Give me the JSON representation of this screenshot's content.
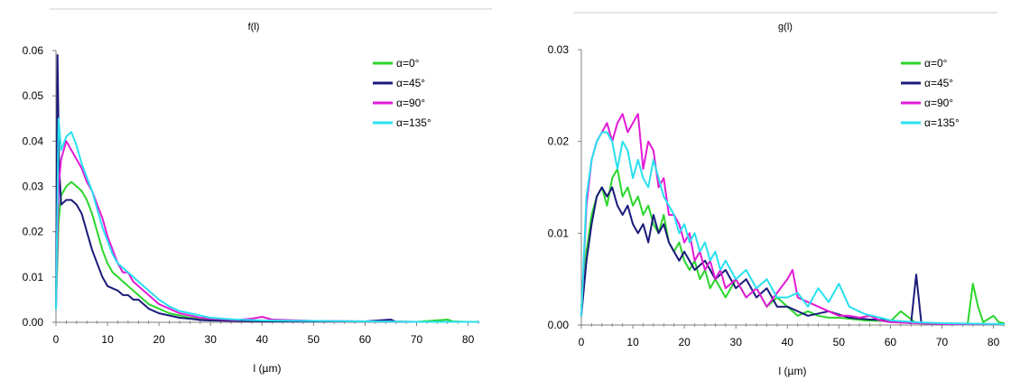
{
  "colors": {
    "alpha_0": "#2bd62b",
    "alpha_45": "#1a1a7a",
    "alpha_90": "#e21ad6",
    "alpha_135": "#28e0ee",
    "axis": "#7f7f7f",
    "title_rule": "#cfcfcf"
  },
  "chart_data": [
    {
      "type": "line",
      "title": "f(l)",
      "xlabel": "l (µm)",
      "ylabel": "",
      "xlim": [
        0,
        82
      ],
      "ylim": [
        0,
        0.06
      ],
      "xticks": [
        "0",
        "10",
        "20",
        "30",
        "40",
        "50",
        "60",
        "70",
        "80"
      ],
      "yticks": [
        "0.00",
        "0.01",
        "0.02",
        "0.03",
        "0.04",
        "0.05",
        "0.06"
      ],
      "grid": false,
      "legend_position": "top-right",
      "series": [
        {
          "name": "α=0°",
          "x": [
            0,
            0.5,
            1,
            2,
            3,
            4,
            5,
            6,
            7,
            8,
            9,
            10,
            11,
            12,
            13,
            14,
            15,
            16,
            18,
            20,
            22,
            24,
            26,
            28,
            30,
            35,
            40,
            50,
            60,
            70,
            76,
            77,
            80,
            82
          ],
          "y": [
            0.003,
            0.022,
            0.028,
            0.03,
            0.031,
            0.03,
            0.029,
            0.027,
            0.024,
            0.02,
            0.016,
            0.013,
            0.011,
            0.01,
            0.009,
            0.008,
            0.007,
            0.006,
            0.004,
            0.003,
            0.002,
            0.0015,
            0.001,
            0.0008,
            0.0005,
            0.0004,
            0.0003,
            0.0002,
            0.0002,
            0.0001,
            0.0006,
            0.0002,
            0.0001,
            0.0001
          ]
        },
        {
          "name": "α=45°",
          "x": [
            0,
            0.3,
            0.6,
            1,
            2,
            3,
            4,
            5,
            6,
            7,
            8,
            9,
            10,
            11,
            12,
            13,
            14,
            15,
            16,
            18,
            20,
            22,
            24,
            26,
            28,
            30,
            35,
            40,
            50,
            60,
            65,
            66,
            70,
            82
          ],
          "y": [
            0.003,
            0.059,
            0.035,
            0.026,
            0.027,
            0.027,
            0.026,
            0.024,
            0.02,
            0.016,
            0.013,
            0.01,
            0.008,
            0.0075,
            0.007,
            0.006,
            0.006,
            0.005,
            0.005,
            0.003,
            0.002,
            0.0015,
            0.001,
            0.0008,
            0.0005,
            0.0004,
            0.0003,
            0.0002,
            0.0002,
            0.0002,
            0.0006,
            0.0001,
            0.0001,
            0.0001
          ]
        },
        {
          "name": "α=90°",
          "x": [
            0,
            0.5,
            1,
            2,
            3,
            4,
            5,
            6,
            7,
            8,
            9,
            10,
            11,
            12,
            13,
            14,
            15,
            16,
            18,
            20,
            22,
            24,
            26,
            28,
            30,
            35,
            38,
            40,
            42,
            50,
            60,
            70,
            82
          ],
          "y": [
            0.003,
            0.03,
            0.036,
            0.04,
            0.038,
            0.036,
            0.034,
            0.031,
            0.029,
            0.026,
            0.023,
            0.019,
            0.016,
            0.013,
            0.011,
            0.011,
            0.009,
            0.008,
            0.006,
            0.004,
            0.003,
            0.002,
            0.0015,
            0.001,
            0.0008,
            0.0005,
            0.0008,
            0.0012,
            0.0006,
            0.0003,
            0.0002,
            0.0001,
            0.0001
          ]
        },
        {
          "name": "α=135°",
          "x": [
            0,
            0.5,
            1,
            2,
            3,
            4,
            5,
            6,
            7,
            8,
            9,
            10,
            11,
            12,
            13,
            14,
            15,
            16,
            18,
            20,
            22,
            24,
            26,
            28,
            30,
            35,
            40,
            50,
            60,
            70,
            82
          ],
          "y": [
            0.003,
            0.045,
            0.038,
            0.041,
            0.042,
            0.039,
            0.035,
            0.032,
            0.029,
            0.025,
            0.021,
            0.018,
            0.015,
            0.013,
            0.012,
            0.011,
            0.01,
            0.009,
            0.007,
            0.005,
            0.0035,
            0.0025,
            0.002,
            0.0015,
            0.001,
            0.0006,
            0.0004,
            0.0003,
            0.0002,
            0.0001,
            0.0001
          ]
        }
      ]
    },
    {
      "type": "line",
      "title": "g(l)",
      "xlabel": "l (µm)",
      "ylabel": "",
      "xlim": [
        0,
        82
      ],
      "ylim": [
        0,
        0.03
      ],
      "xticks": [
        "0",
        "10",
        "20",
        "30",
        "40",
        "50",
        "60",
        "70",
        "80"
      ],
      "yticks": [
        "0.00",
        "0.01",
        "0.02",
        "0.03"
      ],
      "grid": false,
      "legend_position": "top-right",
      "series": [
        {
          "name": "α=0°",
          "x": [
            0,
            1,
            2,
            3,
            4,
            5,
            6,
            7,
            8,
            9,
            10,
            11,
            12,
            13,
            14,
            15,
            16,
            17,
            18,
            19,
            20,
            21,
            22,
            23,
            24,
            25,
            26,
            28,
            30,
            32,
            34,
            36,
            38,
            40,
            42,
            44,
            46,
            48,
            50,
            55,
            60,
            62,
            65,
            70,
            75,
            76,
            77,
            78,
            80,
            81,
            82
          ],
          "y": [
            0.002,
            0.008,
            0.012,
            0.014,
            0.015,
            0.013,
            0.016,
            0.017,
            0.014,
            0.015,
            0.013,
            0.014,
            0.012,
            0.013,
            0.011,
            0.01,
            0.012,
            0.009,
            0.008,
            0.009,
            0.007,
            0.006,
            0.007,
            0.005,
            0.006,
            0.004,
            0.005,
            0.003,
            0.005,
            0.003,
            0.004,
            0.002,
            0.003,
            0.002,
            0.001,
            0.0015,
            0.001,
            0.0008,
            0.0008,
            0.0005,
            0.0004,
            0.0015,
            0.0002,
            0.0001,
            0.0001,
            0.0045,
            0.002,
            0.0003,
            0.001,
            0.0003,
            0.0002
          ]
        },
        {
          "name": "α=45°",
          "x": [
            0,
            1,
            2,
            3,
            4,
            5,
            6,
            7,
            8,
            9,
            10,
            11,
            12,
            13,
            14,
            15,
            16,
            17,
            18,
            19,
            20,
            22,
            24,
            26,
            28,
            30,
            32,
            34,
            36,
            38,
            40,
            44,
            48,
            52,
            56,
            60,
            64,
            65,
            66,
            70,
            82
          ],
          "y": [
            0.001,
            0.007,
            0.011,
            0.014,
            0.015,
            0.014,
            0.015,
            0.013,
            0.012,
            0.013,
            0.011,
            0.01,
            0.011,
            0.009,
            0.012,
            0.01,
            0.011,
            0.009,
            0.008,
            0.007,
            0.008,
            0.006,
            0.007,
            0.005,
            0.006,
            0.004,
            0.005,
            0.003,
            0.004,
            0.002,
            0.002,
            0.001,
            0.0015,
            0.0008,
            0.0006,
            0.0005,
            0.0002,
            0.0055,
            0.0002,
            0.0001,
            0.0001
          ]
        },
        {
          "name": "α=90°",
          "x": [
            0,
            1,
            2,
            3,
            4,
            5,
            6,
            7,
            8,
            9,
            10,
            11,
            12,
            13,
            14,
            15,
            16,
            17,
            18,
            19,
            20,
            21,
            22,
            23,
            24,
            25,
            26,
            27,
            28,
            30,
            32,
            34,
            36,
            38,
            40,
            41,
            42,
            44,
            46,
            48,
            50,
            52,
            54,
            56,
            58,
            60,
            65,
            70,
            82
          ],
          "y": [
            0.001,
            0.013,
            0.018,
            0.02,
            0.021,
            0.022,
            0.02,
            0.022,
            0.023,
            0.021,
            0.022,
            0.023,
            0.017,
            0.02,
            0.019,
            0.015,
            0.016,
            0.012,
            0.012,
            0.011,
            0.009,
            0.01,
            0.007,
            0.008,
            0.006,
            0.007,
            0.005,
            0.006,
            0.004,
            0.005,
            0.003,
            0.004,
            0.002,
            0.0035,
            0.005,
            0.006,
            0.003,
            0.0025,
            0.002,
            0.0015,
            0.001,
            0.001,
            0.0008,
            0.001,
            0.0005,
            0.0003,
            0.0002,
            0.0001,
            0.0001
          ]
        },
        {
          "name": "α=135°",
          "x": [
            0,
            1,
            2,
            3,
            4,
            5,
            6,
            7,
            8,
            9,
            10,
            11,
            12,
            13,
            14,
            15,
            16,
            17,
            18,
            19,
            20,
            21,
            22,
            23,
            24,
            25,
            26,
            27,
            28,
            30,
            32,
            34,
            36,
            38,
            40,
            42,
            44,
            46,
            48,
            50,
            52,
            55,
            58,
            60,
            65,
            70,
            82
          ],
          "y": [
            0.001,
            0.014,
            0.018,
            0.02,
            0.021,
            0.021,
            0.02,
            0.017,
            0.02,
            0.019,
            0.016,
            0.018,
            0.016,
            0.015,
            0.018,
            0.016,
            0.014,
            0.013,
            0.012,
            0.01,
            0.011,
            0.009,
            0.01,
            0.008,
            0.009,
            0.007,
            0.008,
            0.006,
            0.007,
            0.005,
            0.006,
            0.004,
            0.005,
            0.003,
            0.003,
            0.0035,
            0.002,
            0.004,
            0.0025,
            0.0045,
            0.002,
            0.0012,
            0.0008,
            0.0005,
            0.0003,
            0.0002,
            0.0001
          ]
        }
      ]
    }
  ]
}
